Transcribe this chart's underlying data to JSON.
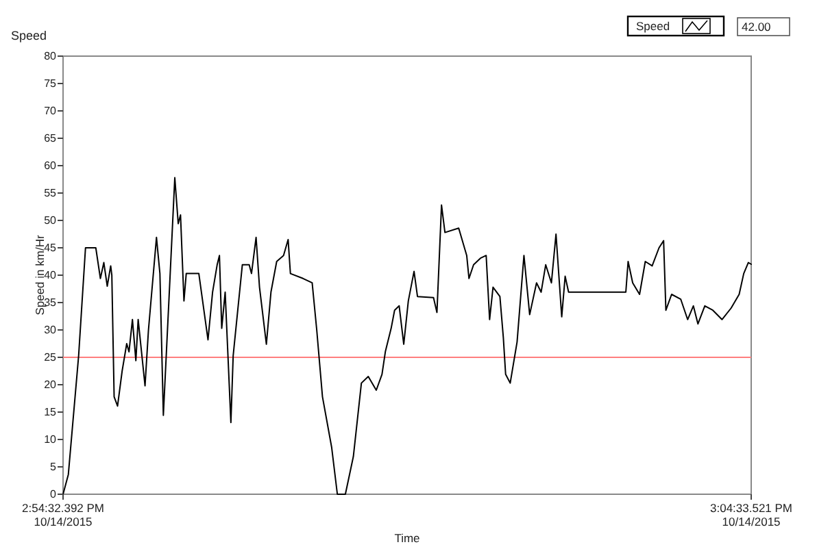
{
  "chart_data": {
    "type": "line",
    "title": "Speed",
    "xlabel": "Time",
    "ylabel": "Speed  in km/Hr",
    "annotations": [
      "42.00"
    ],
    "xlim": [
      "2015-10-14T14:54:32.392",
      "2015-10-14T15:04:33.521"
    ],
    "xticks": [
      {
        "value": "2015-10-14T14:54:32.392",
        "label": "2:54:32.392 PM\n10/14/2015"
      },
      {
        "value": "2015-10-14T15:04:33.521",
        "label": "3:04:33.521 PM\n10/14/2015"
      }
    ],
    "ylim": [
      0,
      80
    ],
    "yticks": [
      0,
      5,
      10,
      15,
      20,
      25,
      30,
      35,
      40,
      45,
      50,
      55,
      60,
      65,
      70,
      75,
      80
    ],
    "grid": false,
    "legend": "top right",
    "marker": "none",
    "line_style": "solid",
    "ref_lines": [
      {
        "axis": "y",
        "value": 25,
        "color": "#ff7f7f"
      }
    ],
    "series": [
      {
        "name": "Speed",
        "color": "#000000",
        "x": [
          "2015-10-14T14:54:32.392",
          "2015-10-14T14:54:37",
          "2015-10-14T14:54:46",
          "2015-10-14T14:54:52",
          "2015-10-14T14:55:01",
          "2015-10-14T14:55:05",
          "2015-10-14T14:55:08",
          "2015-10-14T14:55:11",
          "2015-10-14T14:55:14",
          "2015-10-14T14:55:15",
          "2015-10-14T14:55:17",
          "2015-10-14T14:55:20",
          "2015-10-14T14:55:24",
          "2015-10-14T14:55:28",
          "2015-10-14T14:55:30",
          "2015-10-14T14:55:33",
          "2015-10-14T14:55:36",
          "2015-10-14T14:55:38",
          "2015-10-14T14:55:44",
          "2015-10-14T14:55:47",
          "2015-10-14T14:55:54",
          "2015-10-14T14:55:57",
          "2015-10-14T14:56:00",
          "2015-10-14T14:56:05",
          "2015-10-14T14:56:10",
          "2015-10-14T14:56:13",
          "2015-10-14T14:56:15",
          "2015-10-14T14:56:18",
          "2015-10-14T14:56:20",
          "2015-10-14T14:56:31",
          "2015-10-14T14:56:39",
          "2015-10-14T14:56:43",
          "2015-10-14T14:56:47",
          "2015-10-14T14:56:49",
          "2015-10-14T14:56:51",
          "2015-10-14T14:56:54",
          "2015-10-14T14:56:59",
          "2015-10-14T14:57:01",
          "2015-10-14T14:57:05",
          "2015-10-14T14:57:09",
          "2015-10-14T14:57:15",
          "2015-10-14T14:57:17",
          "2015-10-14T14:57:21",
          "2015-10-14T14:57:24",
          "2015-10-14T14:57:30",
          "2015-10-14T14:57:34",
          "2015-10-14T14:57:39",
          "2015-10-14T14:57:45",
          "2015-10-14T14:57:49",
          "2015-10-14T14:57:51",
          "2015-10-14T14:58:02",
          "2015-10-14T14:58:10",
          "2015-10-14T14:58:14",
          "2015-10-14T14:58:19",
          "2015-10-14T14:58:27",
          "2015-10-14T14:58:32",
          "2015-10-14T14:58:39",
          "2015-10-14T14:58:46",
          "2015-10-14T14:58:53",
          "2015-10-14T14:58:59",
          "2015-10-14T14:59:06",
          "2015-10-14T14:59:11",
          "2015-10-14T14:59:14",
          "2015-10-14T14:59:19",
          "2015-10-14T14:59:22",
          "2015-10-14T14:59:26",
          "2015-10-14T14:59:30",
          "2015-10-14T14:59:34",
          "2015-10-14T14:59:39",
          "2015-10-14T14:59:42",
          "2015-10-14T14:59:56",
          "2015-10-14T14:59:59",
          "2015-10-14T15:00:03",
          "2015-10-14T15:00:06",
          "2015-10-14T15:00:18",
          "2015-10-14T15:00:25",
          "2015-10-14T15:00:27",
          "2015-10-14T15:00:31",
          "2015-10-14T15:00:37",
          "2015-10-14T15:00:42",
          "2015-10-14T15:00:45",
          "2015-10-14T15:00:48",
          "2015-10-14T15:00:54",
          "2015-10-14T15:00:57",
          "2015-10-14T15:00:59",
          "2015-10-14T15:01:03",
          "2015-10-14T15:01:09",
          "2015-10-14T15:01:15",
          "2015-10-14T15:01:20",
          "2015-10-14T15:01:26",
          "2015-10-14T15:01:30",
          "2015-10-14T15:01:34",
          "2015-10-14T15:01:39",
          "2015-10-14T15:01:43",
          "2015-10-14T15:01:48",
          "2015-10-14T15:01:51",
          "2015-10-14T15:01:54",
          "2015-10-14T15:02:44",
          "2015-10-14T15:02:46",
          "2015-10-14T15:02:50",
          "2015-10-14T15:02:56",
          "2015-10-14T15:03:01",
          "2015-10-14T15:03:07",
          "2015-10-14T15:03:13",
          "2015-10-14T15:03:17",
          "2015-10-14T15:03:19",
          "2015-10-14T15:03:24",
          "2015-10-14T15:03:32",
          "2015-10-14T15:03:38",
          "2015-10-14T15:03:43",
          "2015-10-14T15:03:47",
          "2015-10-14T15:03:53",
          "2015-10-14T15:04:00",
          "2015-10-14T15:04:08",
          "2015-10-14T15:04:16",
          "2015-10-14T15:04:23",
          "2015-10-14T15:04:27",
          "2015-10-14T15:04:31",
          "2015-10-14T15:04:33.521"
        ],
        "values": [
          0,
          3.6,
          25.3,
          45,
          45,
          39.4,
          42.3,
          38,
          41.7,
          40,
          17.8,
          16.1,
          22.5,
          27.5,
          26,
          31.9,
          24.4,
          31.9,
          19.8,
          30,
          46.9,
          40.3,
          14.4,
          36,
          57.8,
          49.4,
          51,
          35.3,
          40.3,
          40.3,
          28.2,
          36.9,
          41.9,
          43.6,
          30.3,
          36.9,
          13.1,
          25.3,
          33.6,
          41.9,
          41.9,
          40.3,
          46.9,
          37.8,
          27.4,
          36.9,
          42.5,
          43.6,
          46.5,
          40.3,
          39.4,
          38.6,
          30,
          17.8,
          8.6,
          0,
          0,
          6.9,
          20.3,
          21.5,
          19,
          21.9,
          26.1,
          30.3,
          33.6,
          34.4,
          27.4,
          35.3,
          40.7,
          36.1,
          35.9,
          33.2,
          52.8,
          47.8,
          48.6,
          43.6,
          39.4,
          41.9,
          43.1,
          43.6,
          31.9,
          37.8,
          36.1,
          28.6,
          21.9,
          20.3,
          27.8,
          43.6,
          32.8,
          38.6,
          36.9,
          41.9,
          38.6,
          47.5,
          32.4,
          39.8,
          36.9,
          36.9,
          42.5,
          38.6,
          36.5,
          42.5,
          41.7,
          45,
          46.3,
          33.6,
          36.5,
          35.6,
          31.9,
          34.4,
          31.1,
          34.4,
          33.6,
          31.9,
          34,
          36.5,
          40.3,
          42.3,
          42
        ]
      }
    ]
  }
}
